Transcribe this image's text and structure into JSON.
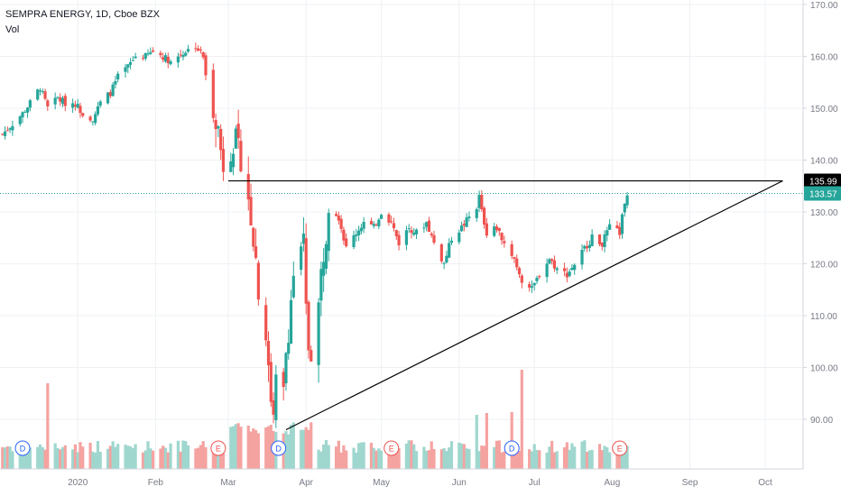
{
  "legend": {
    "symbol_line": "SEMPRA ENERGY, 1D, Cboe BZX",
    "volume_label": "Vol"
  },
  "colors": {
    "up": "#26a69a",
    "down": "#ef5350",
    "up_volume": "#9fd7cf",
    "down_volume": "#f5a3a1",
    "grid": "#eef0f3",
    "current_price_line": "#26a69a",
    "drawing_line": "#000000",
    "axis_text": "#787b86"
  },
  "chart_data": {
    "type": "candlestick",
    "title": "SEMPRA ENERGY, 1D, Cboe BZX",
    "y_axis": {
      "ticks": [
        90,
        100,
        110,
        120,
        130,
        140,
        150,
        160,
        170
      ],
      "tick_labels": [
        "90.00",
        "100.00",
        "110.00",
        "120.00",
        "130.00",
        "140.00",
        "150.00",
        "160.00",
        "170.00"
      ],
      "range": [
        81.5,
        171.5
      ],
      "position": "right"
    },
    "x_axis": {
      "labels": [
        "2020",
        "Feb",
        "Mar",
        "Apr",
        "May",
        "Jun",
        "Jul",
        "Aug",
        "Sep",
        "Oct"
      ],
      "range": [
        "2019-12-01",
        "2020-10-15"
      ]
    },
    "grid": true,
    "last_price": {
      "label": "133.57",
      "value": 133.57
    },
    "drawn_levels": [
      {
        "label": "135.99",
        "value": 135.99,
        "kind": "horizontal resistance line",
        "from": "2020-03-01",
        "to": "2020-10-08"
      }
    ],
    "trendline": {
      "from": {
        "date": "2020-03-24",
        "value": 88.0
      },
      "to": {
        "date": "2020-10-08",
        "value": 136.0
      }
    },
    "events": [
      {
        "date": "2019-12-10",
        "label": "D",
        "kind": "dividend"
      },
      {
        "date": "2020-02-26",
        "label": "E",
        "kind": "earnings"
      },
      {
        "date": "2020-03-21",
        "label": "D",
        "kind": "dividend"
      },
      {
        "date": "2020-05-05",
        "label": "E",
        "kind": "earnings"
      },
      {
        "date": "2020-06-22",
        "label": "D",
        "kind": "dividend"
      },
      {
        "date": "2020-08-04",
        "label": "E",
        "kind": "earnings"
      }
    ],
    "price_path": [
      [
        "2019-12-02",
        145
      ],
      [
        "2019-12-06",
        147
      ],
      [
        "2019-12-10",
        149
      ],
      [
        "2019-12-13",
        151
      ],
      [
        "2019-12-17",
        154
      ],
      [
        "2019-12-20",
        150
      ],
      [
        "2019-12-24",
        152
      ],
      [
        "2019-12-27",
        151
      ],
      [
        "2019-12-31",
        151
      ],
      [
        "2020-01-03",
        149
      ],
      [
        "2020-01-07",
        148
      ],
      [
        "2020-01-10",
        151
      ],
      [
        "2020-01-14",
        153
      ],
      [
        "2020-01-17",
        156
      ],
      [
        "2020-01-21",
        158
      ],
      [
        "2020-01-24",
        160
      ],
      [
        "2020-01-28",
        160
      ],
      [
        "2020-01-31",
        161
      ],
      [
        "2020-02-04",
        160
      ],
      [
        "2020-02-07",
        159
      ],
      [
        "2020-02-10",
        160
      ],
      [
        "2020-02-13",
        161
      ],
      [
        "2020-02-17",
        162
      ],
      [
        "2020-02-20",
        160
      ],
      [
        "2020-02-21",
        156
      ],
      [
        "2020-02-24",
        150
      ],
      [
        "2020-02-26",
        146
      ],
      [
        "2020-02-27",
        142
      ],
      [
        "2020-02-28",
        139
      ],
      [
        "2020-03-02",
        142
      ],
      [
        "2020-03-04",
        144
      ],
      [
        "2020-03-06",
        140
      ],
      [
        "2020-03-09",
        133
      ],
      [
        "2020-03-10",
        129
      ],
      [
        "2020-03-12",
        121
      ],
      [
        "2020-03-13",
        115
      ],
      [
        "2020-03-16",
        106
      ],
      [
        "2020-03-17",
        99
      ],
      [
        "2020-03-18",
        94
      ],
      [
        "2020-03-19",
        92
      ],
      [
        "2020-03-20",
        97
      ],
      [
        "2020-03-23",
        95
      ],
      [
        "2020-03-24",
        103
      ],
      [
        "2020-03-25",
        107
      ],
      [
        "2020-03-26",
        113
      ],
      [
        "2020-03-27",
        118
      ],
      [
        "2020-03-30",
        122
      ],
      [
        "2020-03-31",
        124
      ],
      [
        "2020-04-01",
        111
      ],
      [
        "2020-04-02",
        104
      ],
      [
        "2020-04-03",
        103
      ],
      [
        "2020-04-06",
        112
      ],
      [
        "2020-04-07",
        118
      ],
      [
        "2020-04-09",
        126
      ],
      [
        "2020-04-10",
        132
      ],
      [
        "2020-04-14",
        129
      ],
      [
        "2020-04-17",
        123
      ],
      [
        "2020-04-21",
        126
      ],
      [
        "2020-04-24",
        128
      ],
      [
        "2020-04-28",
        127
      ],
      [
        "2020-05-01",
        130
      ],
      [
        "2020-05-05",
        128
      ],
      [
        "2020-05-08",
        124
      ],
      [
        "2020-05-12",
        127
      ],
      [
        "2020-05-15",
        126
      ],
      [
        "2020-05-19",
        128
      ],
      [
        "2020-05-22",
        124
      ],
      [
        "2020-05-26",
        120
      ],
      [
        "2020-05-29",
        125
      ],
      [
        "2020-06-02",
        127
      ],
      [
        "2020-06-05",
        129
      ],
      [
        "2020-06-08",
        131
      ],
      [
        "2020-06-09",
        133
      ],
      [
        "2020-06-10",
        130
      ],
      [
        "2020-06-12",
        126
      ],
      [
        "2020-06-16",
        127
      ],
      [
        "2020-06-19",
        124
      ],
      [
        "2020-06-23",
        121
      ],
      [
        "2020-06-26",
        117
      ],
      [
        "2020-06-30",
        115
      ],
      [
        "2020-07-03",
        118
      ],
      [
        "2020-07-07",
        121
      ],
      [
        "2020-07-10",
        119
      ],
      [
        "2020-07-14",
        118
      ],
      [
        "2020-07-17",
        120
      ],
      [
        "2020-07-21",
        123
      ],
      [
        "2020-07-24",
        125
      ],
      [
        "2020-07-28",
        124
      ],
      [
        "2020-07-31",
        127
      ],
      [
        "2020-08-04",
        126
      ],
      [
        "2020-08-05",
        129
      ],
      [
        "2020-08-06",
        131
      ],
      [
        "2020-08-07",
        133.57
      ]
    ],
    "volume_spikes": [
      [
        "2019-12-20",
        95
      ],
      [
        "2020-03-09",
        48
      ],
      [
        "2020-03-16",
        46
      ],
      [
        "2020-03-19",
        42
      ],
      [
        "2020-06-08",
        60
      ],
      [
        "2020-06-12",
        62
      ],
      [
        "2020-06-22",
        63
      ],
      [
        "2020-06-26",
        112
      ]
    ]
  }
}
